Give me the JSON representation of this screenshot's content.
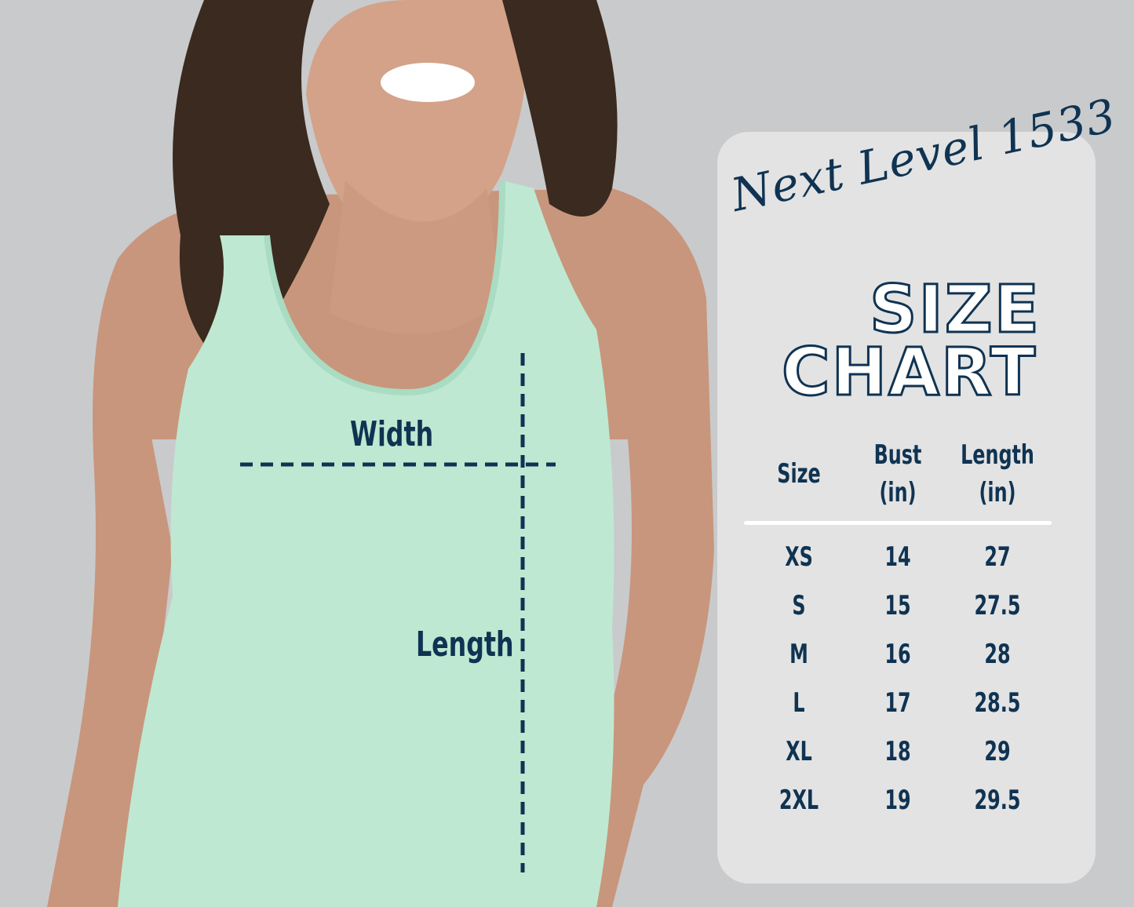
{
  "brand": "Next Level 1533",
  "title_line1": "SIZE",
  "title_line2": "CHART",
  "colors": {
    "text": "#0f3352",
    "card": "#e3e3e3",
    "background": "#c9cacc",
    "shirt": "#bfe8d2"
  },
  "diagram": {
    "width_label": "Width",
    "length_label": "Length"
  },
  "table": {
    "headers": [
      "Size",
      "Bust\n(in)",
      "Length\n(in)"
    ],
    "header_lines": [
      [
        "Size"
      ],
      [
        "Bust",
        "(in)"
      ],
      [
        "Length",
        "(in)"
      ]
    ],
    "rows": [
      [
        "XS",
        "14",
        "27"
      ],
      [
        "S",
        "15",
        "27.5"
      ],
      [
        "M",
        "16",
        "28"
      ],
      [
        "L",
        "17",
        "28.5"
      ],
      [
        "XL",
        "18",
        "29"
      ],
      [
        "2XL",
        "19",
        "29.5"
      ]
    ]
  }
}
